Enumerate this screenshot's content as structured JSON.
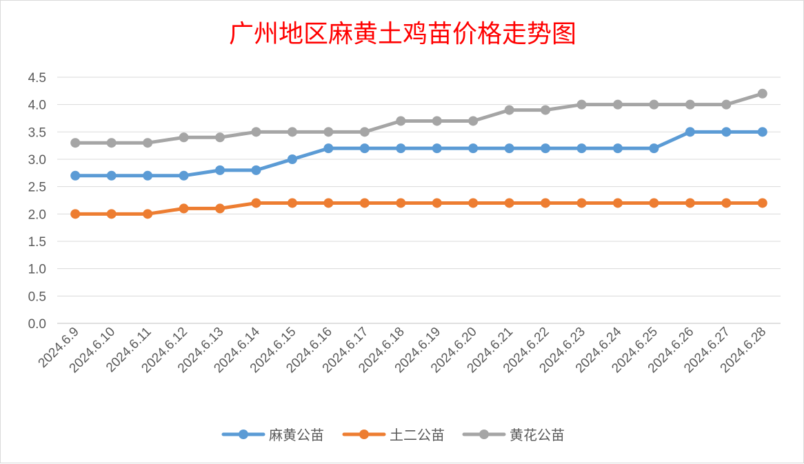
{
  "chart_data": {
    "type": "line",
    "title": "广州地区麻黄土鸡苗价格走势图",
    "categories": [
      "2024.6.9",
      "2024.6.10",
      "2024.6.11",
      "2024.6.12",
      "2024.6.13",
      "2024.6.14",
      "2024.6.15",
      "2024.6.16",
      "2024.6.17",
      "2024.6.18",
      "2024.6.19",
      "2024.6.20",
      "2024.6.21",
      "2024.6.22",
      "2024.6.23",
      "2024.6.24",
      "2024.6.25",
      "2024.6.26",
      "2024.6.27",
      "2024.6.28"
    ],
    "ylim": [
      0,
      4.5
    ],
    "yticks": [
      "0.0",
      "0.5",
      "1.0",
      "1.5",
      "2.0",
      "2.5",
      "3.0",
      "3.5",
      "4.0",
      "4.5"
    ],
    "grid": true,
    "legend_position": "bottom",
    "series": [
      {
        "name": "麻黄公苗",
        "color": "#5b9bd5",
        "values": [
          2.7,
          2.7,
          2.7,
          2.7,
          2.8,
          2.8,
          3.0,
          3.2,
          3.2,
          3.2,
          3.2,
          3.2,
          3.2,
          3.2,
          3.2,
          3.2,
          3.2,
          3.5,
          3.5,
          3.5
        ]
      },
      {
        "name": "土二公苗",
        "color": "#ed7d31",
        "values": [
          2.0,
          2.0,
          2.0,
          2.1,
          2.1,
          2.2,
          2.2,
          2.2,
          2.2,
          2.2,
          2.2,
          2.2,
          2.2,
          2.2,
          2.2,
          2.2,
          2.2,
          2.2,
          2.2,
          2.2
        ]
      },
      {
        "name": "黄花公苗",
        "color": "#a5a5a5",
        "values": [
          3.3,
          3.3,
          3.3,
          3.4,
          3.4,
          3.5,
          3.5,
          3.5,
          3.5,
          3.7,
          3.7,
          3.7,
          3.9,
          3.9,
          4.0,
          4.0,
          4.0,
          4.0,
          4.0,
          4.2
        ]
      }
    ]
  }
}
